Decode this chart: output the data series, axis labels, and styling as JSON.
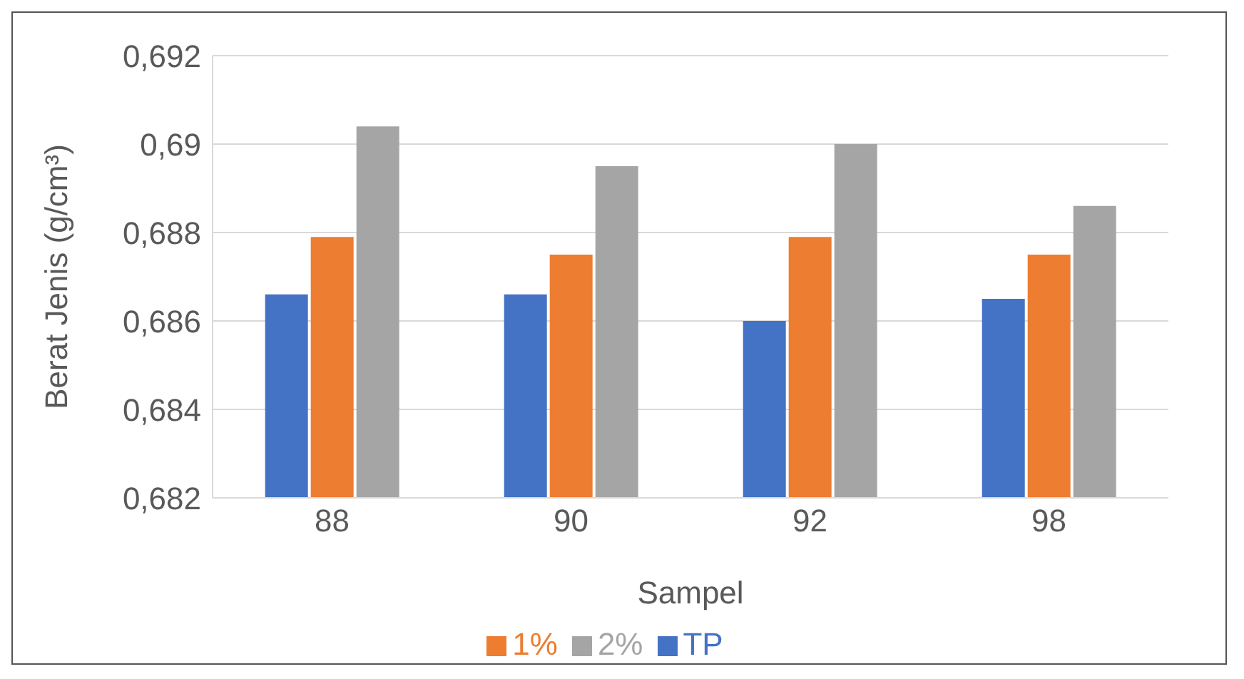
{
  "chart_data": {
    "type": "bar",
    "xlabel": "Sampel",
    "ylabel": "Berat Jenis (g/cm³)",
    "categories": [
      "88",
      "90",
      "92",
      "98"
    ],
    "series": [
      {
        "name": "TP",
        "color": "#4472c4",
        "values": [
          0.6866,
          0.6866,
          0.686,
          0.6865
        ]
      },
      {
        "name": "1%",
        "color": "#ed7d31",
        "values": [
          0.6879,
          0.6875,
          0.6879,
          0.6875
        ]
      },
      {
        "name": "2%",
        "color": "#a5a5a5",
        "values": [
          0.6904,
          0.6895,
          0.69,
          0.6886
        ]
      }
    ],
    "ylim": [
      0.682,
      0.692
    ],
    "yticks": [
      {
        "value": 0.682,
        "label": "0,682"
      },
      {
        "value": 0.684,
        "label": "0,684"
      },
      {
        "value": 0.686,
        "label": "0,686"
      },
      {
        "value": 0.688,
        "label": "0,688"
      },
      {
        "value": 0.69,
        "label": "0,69"
      },
      {
        "value": 0.692,
        "label": "0,692"
      }
    ],
    "grid": "y",
    "legend": "bottom"
  }
}
